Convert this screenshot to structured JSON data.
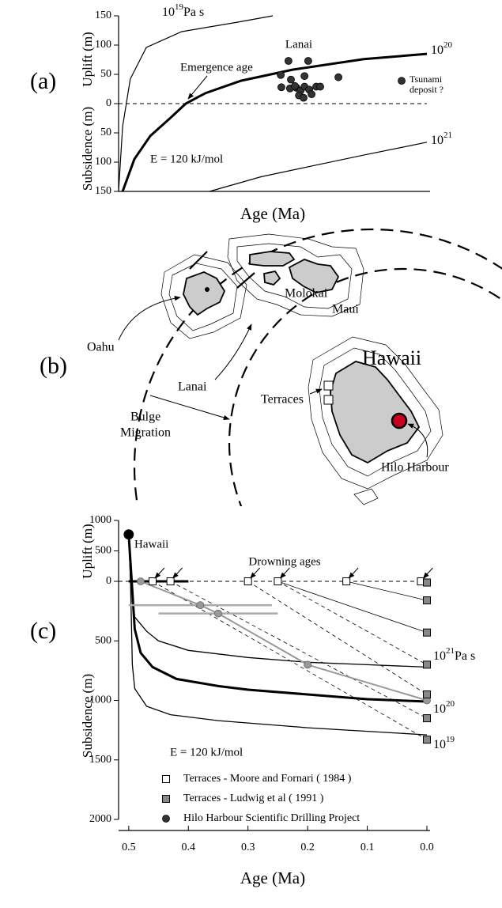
{
  "chart_data": [
    {
      "type": "line",
      "panel": "(a)",
      "xlabel": "Age (Ma)",
      "ylabel_upper": "Uplift (m)",
      "ylabel_lower": "Subsidence (m)",
      "xlim": [
        0,
        1
      ],
      "ylim": [
        -150,
        150
      ],
      "yticks": [
        150,
        100,
        50,
        0,
        {
          "value": -50,
          "label": "50"
        },
        {
          "value": -100,
          "label": "100"
        },
        {
          "value": -150,
          "label": "150"
        }
      ],
      "hline": 0,
      "series": [
        {
          "mode": "line",
          "color": "#000",
          "width": 1.2,
          "label": {
            "base": "10",
            "exponent": "19",
            "unit": "Pa s"
          },
          "x": [
            0,
            0.013,
            0.038,
            0.09,
            0.205,
            0.385,
            0.5
          ],
          "values": [
            -150,
            -39,
            42,
            96,
            123,
            139,
            150
          ]
        },
        {
          "mode": "line",
          "color": "#000",
          "width": 3,
          "label": {
            "base": "10",
            "exponent": "20"
          },
          "x": [
            0.013,
            0.051,
            0.103,
            0.167,
            0.218,
            0.282,
            0.397,
            0.564,
            0.795,
            1
          ],
          "values": [
            -150,
            -95,
            -55,
            -25,
            0,
            18,
            39,
            58,
            76,
            85
          ]
        },
        {
          "mode": "line",
          "color": "#000",
          "width": 1.2,
          "label": {
            "base": "10",
            "exponent": "21"
          },
          "x": [
            0.295,
            0.462,
            0.641,
            0.795,
            1
          ],
          "values": [
            -150,
            -125,
            -105,
            -88,
            -66
          ]
        },
        {
          "mode": "markers",
          "marker": "circle",
          "color": "#333",
          "x": [
            0.551,
            0.615,
            0.526,
            0.559,
            0.603,
            0.713,
            0.528,
            0.556,
            0.577,
            0.59,
            0.603,
            0.618,
            0.641,
            0.654,
            0.585,
            0.6,
            0.626,
            0.572
          ],
          "values": [
            73,
            73,
            49,
            41,
            47,
            45,
            28,
            26,
            27,
            22,
            29,
            24,
            29,
            29,
            14,
            10,
            16,
            30
          ]
        },
        {
          "mode": "markers",
          "marker": "circle",
          "color": "#333",
          "x": [
            0.918
          ],
          "values": [
            39
          ]
        }
      ],
      "annotations": [
        "Lanai",
        "Emergence age",
        "E = 120 kJ/mol",
        "Tsunami",
        "deposit ?"
      ]
    },
    {
      "type": "line",
      "panel": "(c)",
      "xlabel": "Age (Ma)",
      "ylabel_upper": "Uplift (m)",
      "ylabel_lower": "Subsidence (m)",
      "xlim": [
        0.517,
        0
      ],
      "ylim": [
        -2000,
        1000
      ],
      "xticks": [
        0.5,
        0.4,
        0.3,
        0.2,
        0.1,
        {
          "value": 0,
          "label": "0.0"
        }
      ],
      "yticks": [
        1000,
        500,
        0,
        {
          "value": -500,
          "label": "500"
        },
        {
          "value": -1000,
          "label": "1000"
        },
        {
          "value": -1500,
          "label": "1500"
        },
        {
          "value": -2000,
          "label": "2000"
        }
      ],
      "hline": 0,
      "series": [
        {
          "mode": "line",
          "color": "#000",
          "width": 1.3,
          "label": {
            "base": "10",
            "exponent": "21",
            "unit": "Pa s"
          },
          "x": [
            0.5,
            0.497,
            0.49,
            0.47,
            0.45,
            0.4,
            0.3,
            0.2,
            0.1,
            0.0
          ],
          "values": [
            770,
            0,
            -300,
            -420,
            -500,
            -580,
            -640,
            -680,
            -700,
            -720
          ]
        },
        {
          "mode": "line",
          "color": "#000",
          "width": 3,
          "label": {
            "base": "10",
            "exponent": "20"
          },
          "x": [
            0.5,
            0.497,
            0.495,
            0.49,
            0.48,
            0.46,
            0.42,
            0.35,
            0.3,
            0.2,
            0.1,
            0.0
          ],
          "values": [
            770,
            300,
            0,
            -400,
            -600,
            -720,
            -820,
            -880,
            -910,
            -950,
            -990,
            -1010
          ]
        },
        {
          "mode": "line",
          "color": "#000",
          "width": 1.3,
          "label": {
            "base": "10",
            "exponent": "19"
          },
          "x": [
            0.5,
            0.497,
            0.494,
            0.49,
            0.47,
            0.43,
            0.35,
            0.2,
            0.1,
            0.0
          ],
          "values": [
            770,
            0,
            -700,
            -900,
            -1050,
            -1120,
            -1170,
            -1230,
            -1260,
            -1290
          ]
        },
        {
          "mode": "line",
          "color": "#000",
          "width": 3,
          "x": [
            0.5,
            0.4
          ],
          "values": [
            0,
            0
          ]
        },
        {
          "mode": "line",
          "color": "#000",
          "width": 0.8,
          "dash": true,
          "x": [
            0.46,
            0
          ],
          "values": [
            0,
            -1330
          ]
        },
        {
          "mode": "line",
          "color": "#000",
          "width": 0.8,
          "dash": true,
          "x": [
            0.43,
            0
          ],
          "values": [
            0,
            -1150
          ]
        },
        {
          "mode": "line",
          "color": "#000",
          "width": 0.8,
          "dash": true,
          "x": [
            0.3,
            0
          ],
          "values": [
            0,
            -950
          ]
        },
        {
          "mode": "line",
          "color": "#000",
          "width": 0.8,
          "dash": true,
          "x": [
            0.25,
            0
          ],
          "values": [
            0,
            -700
          ]
        },
        {
          "mode": "line",
          "color": "#000",
          "width": 0.8,
          "x": [
            0.25,
            0
          ],
          "values": [
            0,
            -430
          ]
        },
        {
          "mode": "line",
          "color": "#000",
          "width": 0.8,
          "x": [
            0.135,
            0
          ],
          "values": [
            0,
            -160
          ]
        },
        {
          "mode": "line",
          "color": "#000",
          "width": 0.8,
          "x": [
            0.01,
            0
          ],
          "values": [
            0,
            -10
          ]
        },
        {
          "mode": "markers",
          "marker": "circle",
          "color": "#000",
          "size": 6,
          "x": [
            0.5
          ],
          "values": [
            770
          ]
        },
        {
          "mode": "markers",
          "marker": "circle",
          "color": "#999",
          "connect": true,
          "x": [
            0.48,
            0.38,
            0.35,
            0.2,
            0.0
          ],
          "values": [
            0,
            -200,
            -270,
            -700,
            -1000
          ],
          "xerr": [
            0,
            0.12,
            0.1,
            0,
            0
          ]
        },
        {
          "mode": "markers",
          "marker": "square",
          "name": "Terraces - Moore and Fornari ( 1984 )",
          "color": "#fff",
          "x": [
            0.46,
            0.43,
            0.3,
            0.25,
            0.135,
            0.01
          ],
          "values": [
            0,
            0,
            0,
            0,
            0,
            0
          ]
        },
        {
          "mode": "markers",
          "marker": "square",
          "name": "Terraces - Ludwig et al ( 1991 )",
          "color": "#888",
          "x": [
            0,
            0,
            0,
            0,
            0,
            0,
            0
          ],
          "values": [
            -10,
            -160,
            -430,
            -700,
            -950,
            -1150,
            -1330
          ]
        },
        {
          "mode": "legend-only",
          "marker": "circle",
          "name": "Hilo Harbour  Scientific Drilling Project",
          "color": "#333",
          "x": [],
          "values": []
        }
      ],
      "annotations": [
        "Hawaii",
        "Drowning ages",
        "E = 120 kJ/mol"
      ]
    }
  ],
  "map": {
    "panel": "(b)",
    "labels": [
      "Molokai",
      "Oahu",
      "Maui",
      "Lanai",
      "Hawaii",
      "Terraces",
      "Bulge",
      "Migration",
      "Hilo Harbour"
    ]
  }
}
